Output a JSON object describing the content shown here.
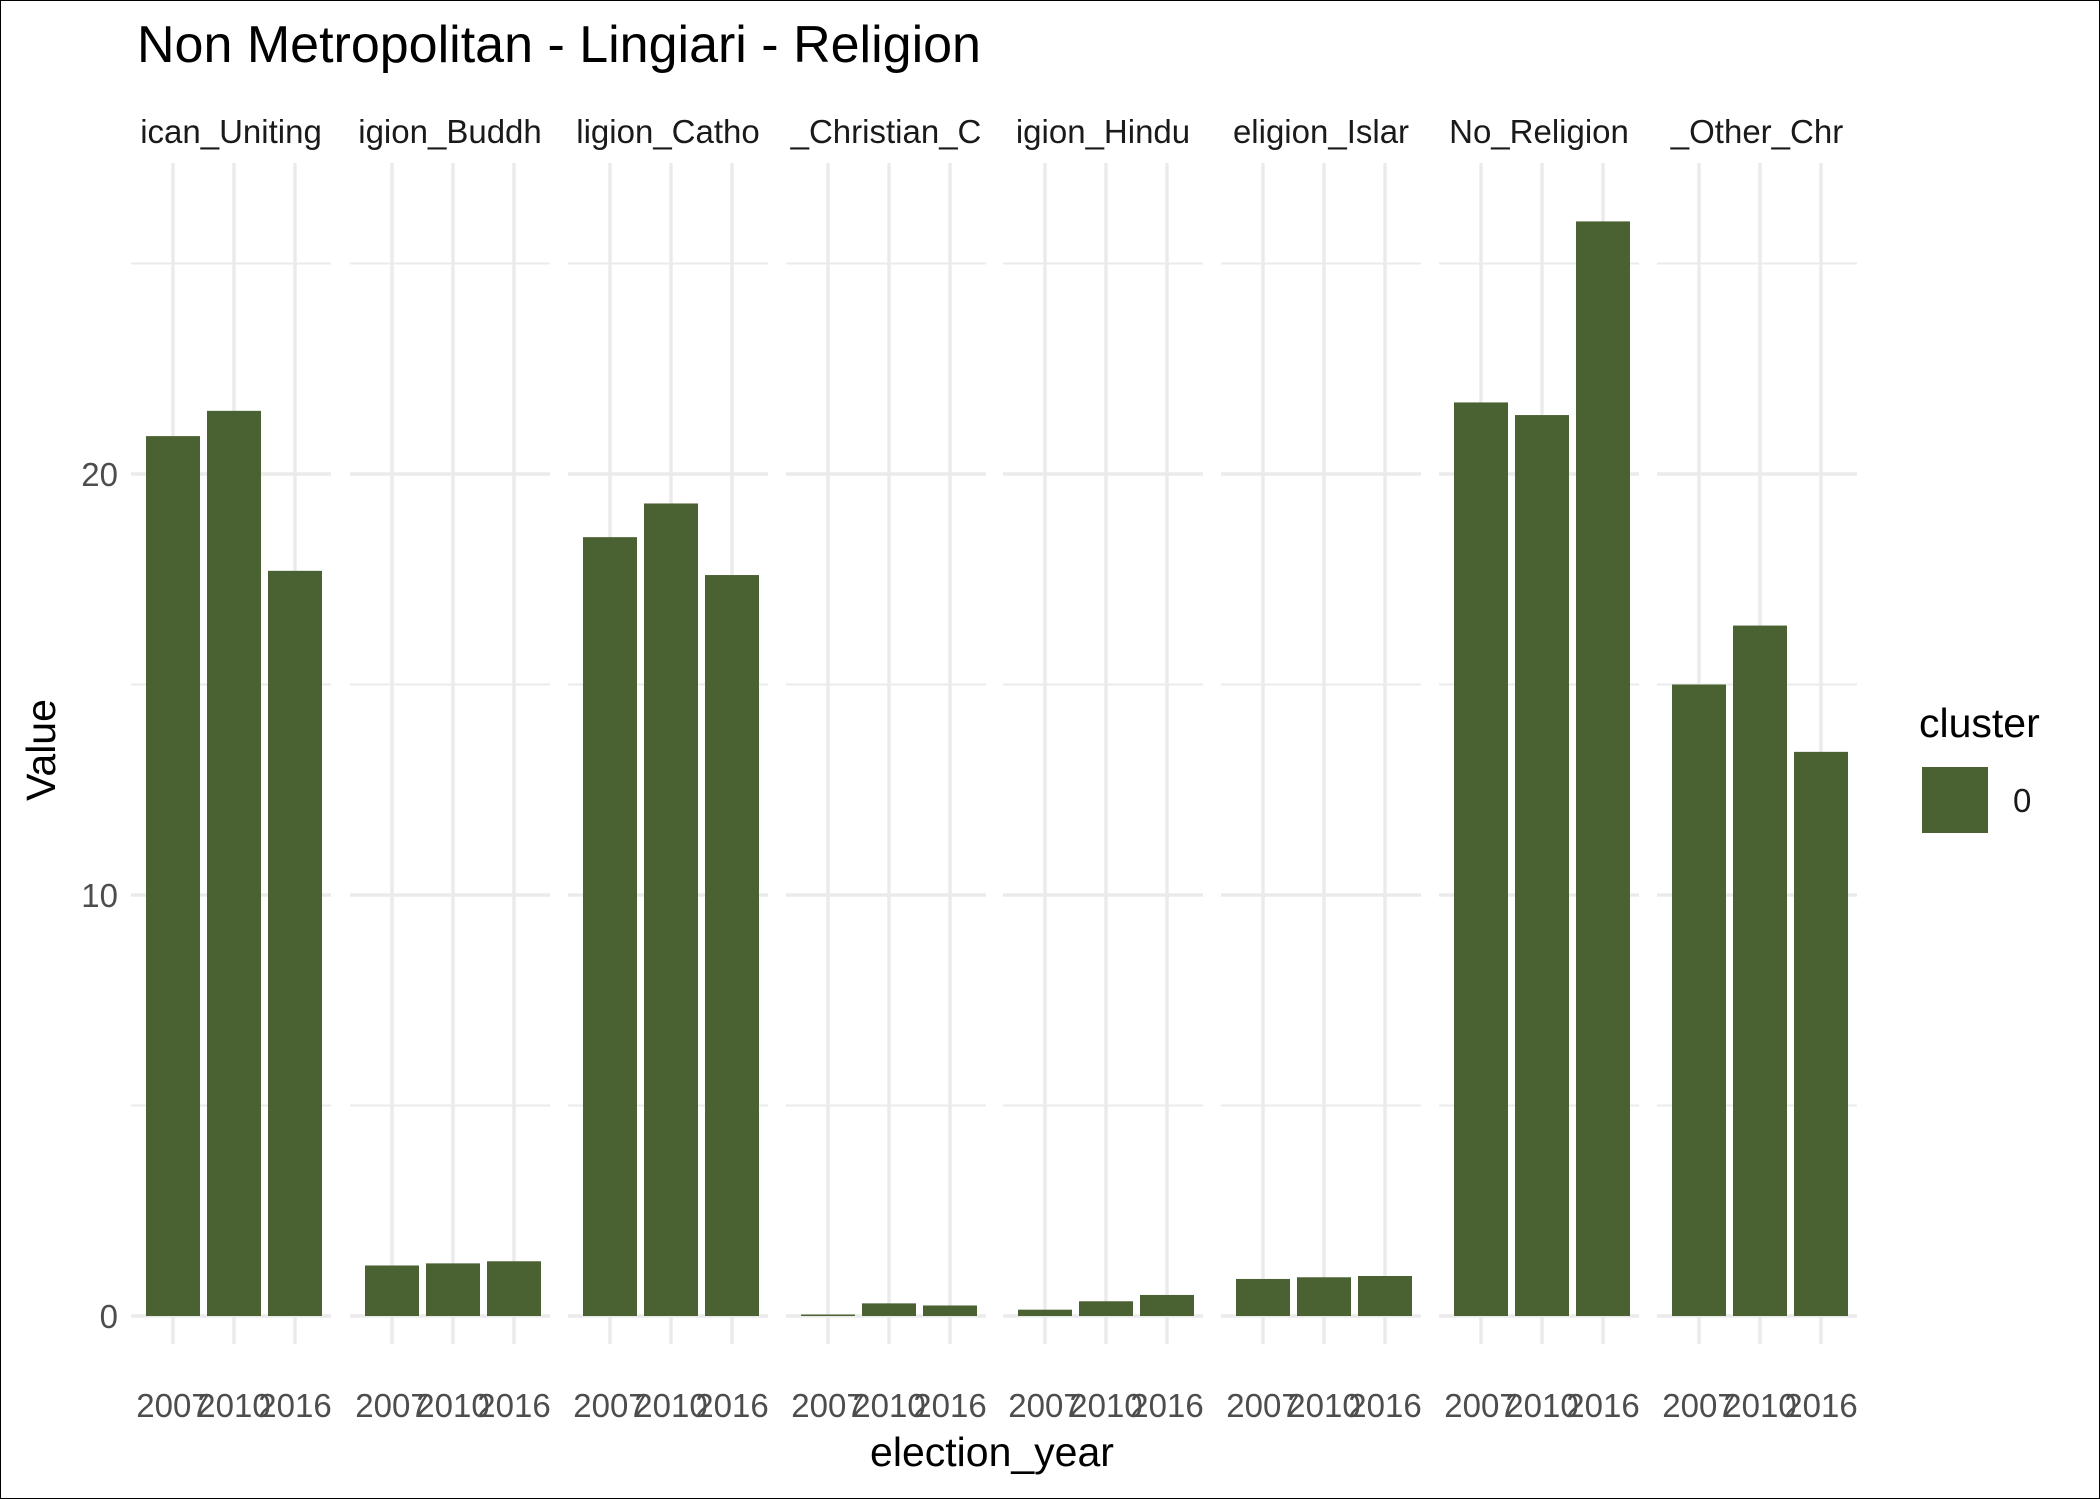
{
  "chart_data": {
    "type": "bar",
    "title": "Non Metropolitan - Lingiari - Religion",
    "xlabel": "election_year",
    "ylabel": "Value",
    "ylim": [
      0,
      26.5
    ],
    "y_ticks": [
      "0",
      "10",
      "20"
    ],
    "grid": true,
    "colors": {
      "bar": "#4a6132",
      "grid": "#ebebeb"
    },
    "legend": {
      "title": "cluster",
      "placement": "right",
      "entries": [
        {
          "label": "0",
          "color": "#4a6132"
        }
      ]
    },
    "categories": [
      "2007",
      "2010",
      "2016"
    ],
    "facets": [
      {
        "strip": "ican_Uniting",
        "values": [
          20.9,
          21.5,
          17.7
        ]
      },
      {
        "strip": "igion_Buddh",
        "values": [
          1.2,
          1.25,
          1.3
        ]
      },
      {
        "strip": "ligion_Catho",
        "values": [
          18.5,
          19.3,
          17.6
        ]
      },
      {
        "strip": "_Christian_C",
        "values": [
          0.03,
          0.3,
          0.25
        ]
      },
      {
        "strip": "igion_Hindu",
        "values": [
          0.15,
          0.35,
          0.5
        ]
      },
      {
        "strip": "eligion_Islar",
        "values": [
          0.88,
          0.92,
          0.95
        ]
      },
      {
        "strip": "No_Religion",
        "values": [
          21.7,
          21.4,
          26.0
        ]
      },
      {
        "strip": "_Other_Chr",
        "values": [
          15.0,
          16.4,
          13.4
        ]
      }
    ]
  }
}
